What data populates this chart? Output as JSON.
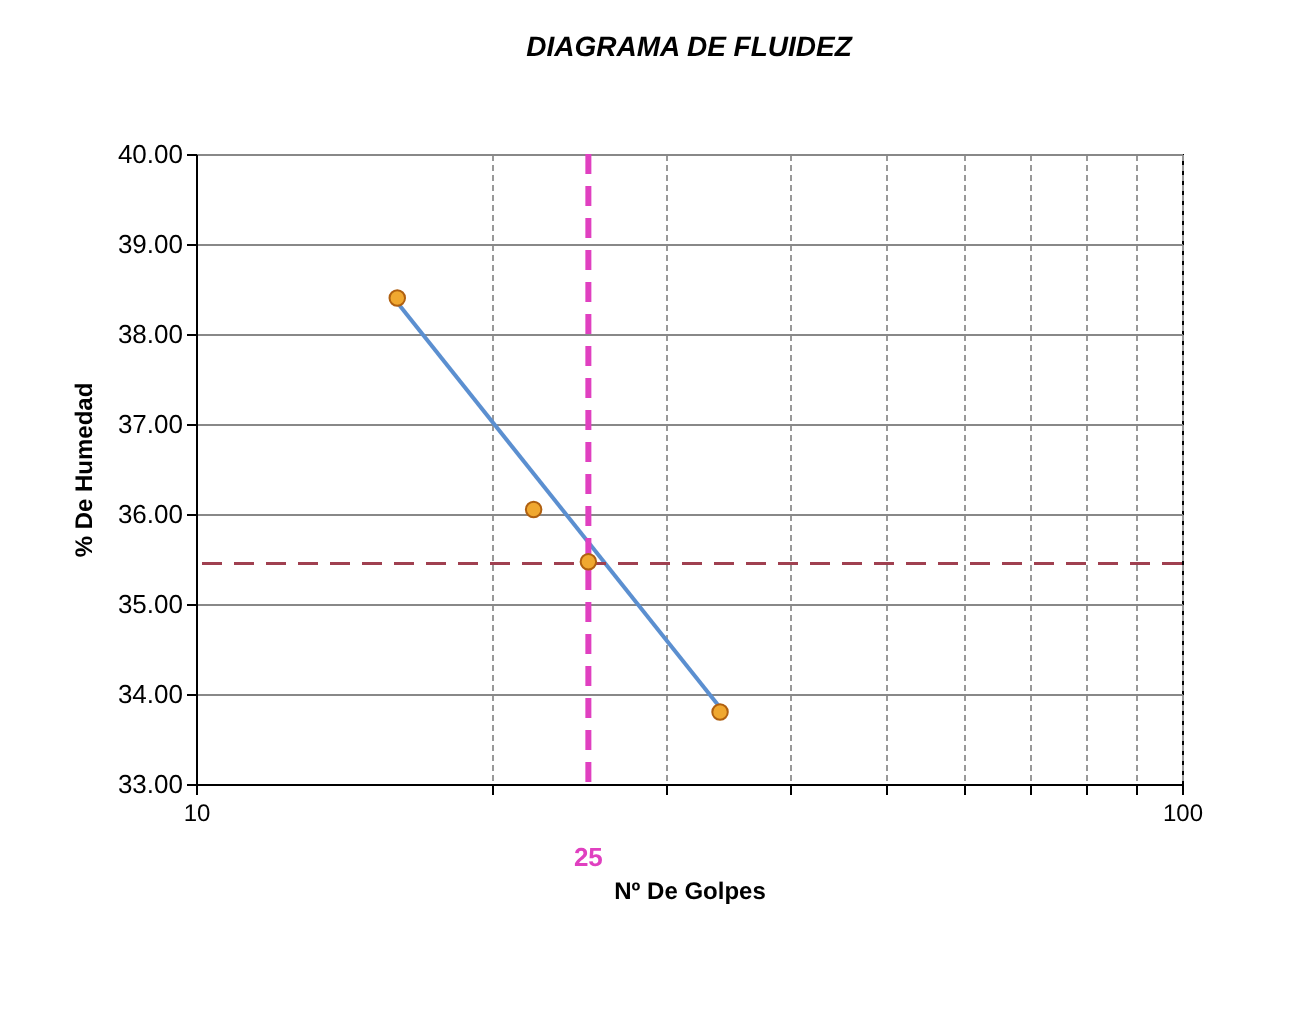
{
  "chart_data": {
    "type": "scatter",
    "title": "DIAGRAMA DE FLUIDEZ",
    "xlabel": "Nº De Golpes",
    "ylabel": "% De Humedad",
    "log": "x",
    "grid": true,
    "marker": "circle",
    "xlim": [
      10,
      100
    ],
    "xticks": [
      10,
      {
        "value": 20,
        "label": null
      },
      {
        "value": 30,
        "label": null
      },
      {
        "value": 40,
        "label": null
      },
      {
        "value": 50,
        "label": null
      },
      {
        "value": 60,
        "label": null
      },
      {
        "value": 70,
        "label": null
      },
      {
        "value": 80,
        "label": null
      },
      {
        "value": 90,
        "label": null
      },
      100
    ],
    "ylim": [
      33,
      40
    ],
    "yticks": [
      {
        "value": 33,
        "label": "33.00"
      },
      {
        "value": 34,
        "label": "34.00"
      },
      {
        "value": 35,
        "label": "35.00"
      },
      {
        "value": 36,
        "label": "36.00"
      },
      {
        "value": 37,
        "label": "37.00"
      },
      {
        "value": 38,
        "label": "38.00"
      },
      {
        "value": 39,
        "label": "39.00"
      },
      {
        "value": 40,
        "label": "40.00"
      }
    ],
    "series": [
      {
        "type": "line",
        "marker": "none",
        "color": "#5b8fd0",
        "x": [
          16,
          34
        ],
        "values": [
          38.35,
          33.85
        ]
      },
      {
        "color": "#f0a830",
        "x": [
          16,
          22,
          25,
          34
        ],
        "values": [
          38.4,
          36.05,
          35.47,
          33.8
        ]
      }
    ],
    "ref_lines": [
      {
        "axis": "x",
        "value": 25,
        "label": "25",
        "color": "#e040c0",
        "line_style": "dashed"
      },
      {
        "axis": "y",
        "value": 35.45,
        "color": "#a04050",
        "line_style": "dashed"
      }
    ]
  }
}
